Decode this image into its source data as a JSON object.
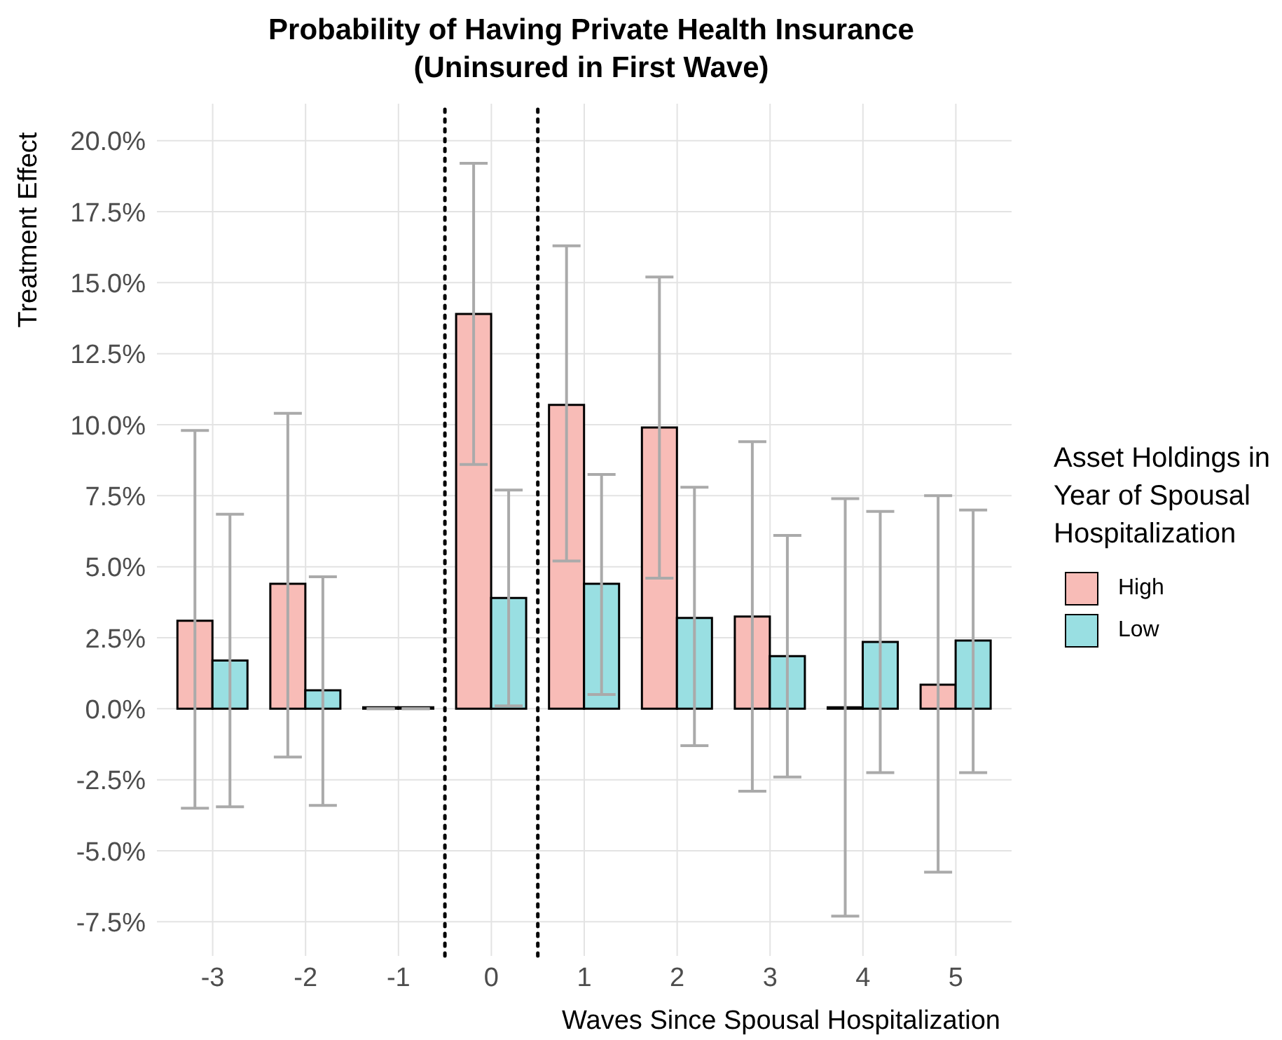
{
  "chart_data": {
    "type": "bar",
    "title": "Probability of Having Private Health Insurance\n(Uninsured in First Wave)",
    "xlabel": "Waves Since Spousal Hospitalization",
    "ylabel": "Treatment Effect",
    "legend_title": "Asset Holdings in\nYear of Spousal\nHospitalization",
    "x": [
      -3,
      -2,
      -1,
      0,
      1,
      2,
      3,
      4,
      5
    ],
    "series": [
      {
        "name": "High",
        "color": "#f8bcb7",
        "values": [
          3.1,
          4.4,
          0,
          13.9,
          10.7,
          9.9,
          3.25,
          0.05,
          0.85
        ],
        "errors": [
          [
            -3.5,
            9.8
          ],
          [
            -1.7,
            10.4
          ],
          0,
          [
            8.6,
            19.2
          ],
          [
            5.2,
            16.3
          ],
          [
            4.6,
            15.2
          ],
          [
            -2.9,
            9.4
          ],
          [
            -7.3,
            7.4
          ],
          [
            -5.75,
            7.5
          ]
        ]
      },
      {
        "name": "Low",
        "color": "#99dfe2",
        "values": [
          1.7,
          0.65,
          0,
          3.9,
          4.4,
          3.2,
          1.85,
          2.35,
          2.4
        ],
        "errors": [
          [
            -3.45,
            6.85
          ],
          [
            -3.4,
            4.65
          ],
          0,
          [
            0.1,
            7.7
          ],
          [
            0.5,
            8.25
          ],
          [
            -1.3,
            7.8
          ],
          [
            -2.4,
            6.1
          ],
          [
            -2.25,
            6.95
          ],
          [
            -2.25,
            7.0
          ]
        ]
      }
    ],
    "xlim": [
      -3.6,
      5.6
    ],
    "xticks": [
      -3,
      -2,
      -1,
      0,
      1,
      2,
      3,
      4,
      5
    ],
    "ylim": [
      -8.7,
      21.3
    ],
    "yticks": [
      {
        "value": -7.5,
        "label": "-7.5%"
      },
      {
        "value": -5,
        "label": "-5.0%"
      },
      {
        "value": -2.5,
        "label": "-2.5%"
      },
      {
        "value": 0,
        "label": "0.0%"
      },
      {
        "value": 2.5,
        "label": "2.5%"
      },
      {
        "value": 5,
        "label": "5.0%"
      },
      {
        "value": 7.5,
        "label": "7.5%"
      },
      {
        "value": 10,
        "label": "10.0%"
      },
      {
        "value": 12.5,
        "label": "12.5%"
      },
      {
        "value": 15,
        "label": "15.0%"
      },
      {
        "value": 17.5,
        "label": "17.5%"
      },
      {
        "value": 20,
        "label": "20.0%"
      }
    ],
    "ref_lines": [
      {
        "axis": "x",
        "value": -0.5,
        "color": "#000000",
        "line_style": "dotted"
      },
      {
        "axis": "x",
        "value": 0.5,
        "color": "#000000",
        "line_style": "dotted"
      }
    ],
    "grid": true,
    "legend": "right"
  }
}
